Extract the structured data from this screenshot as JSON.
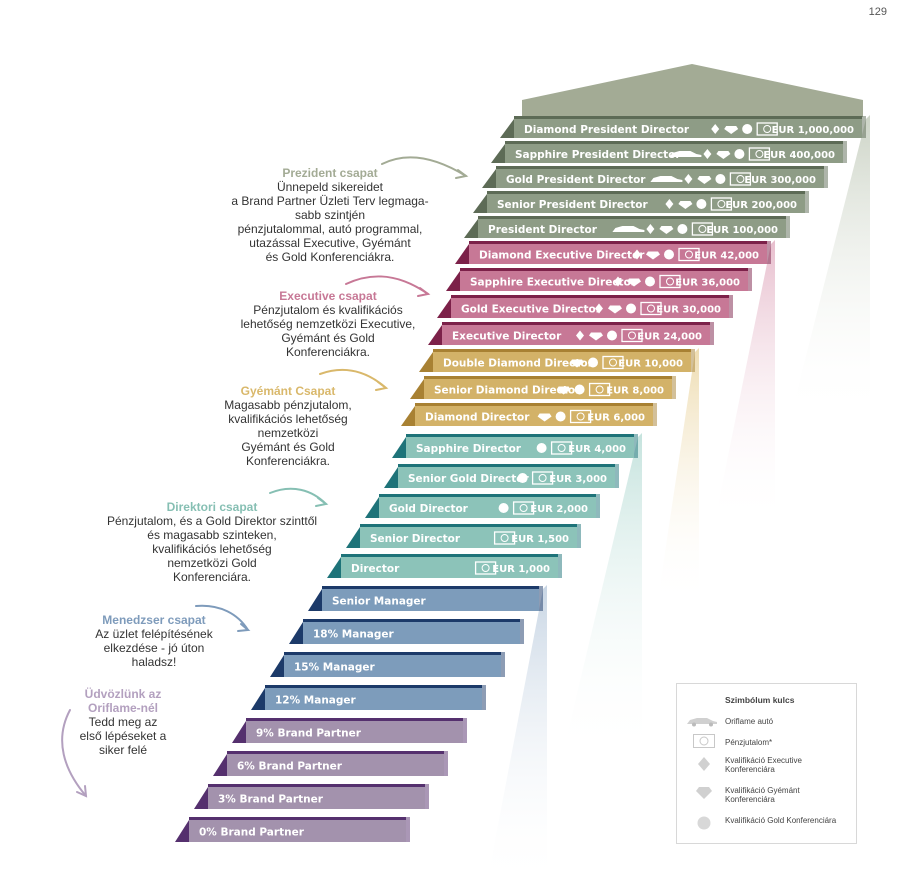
{
  "page_number": "129",
  "levels": [
    {
      "label": "Diamond President Director",
      "amount": "EUR 1,000,000",
      "group": "president",
      "car": false,
      "diamond": true,
      "gem": true,
      "circle": true,
      "cash": true
    },
    {
      "label": "Sapphire President Director",
      "amount": "EUR 400,000",
      "group": "president",
      "car": true,
      "diamond": true,
      "gem": true,
      "circle": true,
      "cash": true
    },
    {
      "label": "Gold President Director",
      "amount": "EUR 300,000",
      "group": "president",
      "car": true,
      "diamond": true,
      "gem": true,
      "circle": true,
      "cash": true
    },
    {
      "label": "Senior President Director",
      "amount": "EUR 200,000",
      "group": "president",
      "car": false,
      "diamond": true,
      "gem": true,
      "circle": true,
      "cash": true
    },
    {
      "label": "President Director",
      "amount": "EUR 100,000",
      "group": "president",
      "car": true,
      "diamond": true,
      "gem": true,
      "circle": true,
      "cash": true
    },
    {
      "label": "Diamond Executive Director",
      "amount": "EUR 42,000",
      "group": "executive",
      "car": false,
      "diamond": true,
      "gem": true,
      "circle": true,
      "cash": true
    },
    {
      "label": "Sapphire Executive Director",
      "amount": "EUR 36,000",
      "group": "executive",
      "car": false,
      "diamond": true,
      "gem": true,
      "circle": true,
      "cash": true
    },
    {
      "label": "Gold Executive Director",
      "amount": "EUR 30,000",
      "group": "executive",
      "car": false,
      "diamond": true,
      "gem": true,
      "circle": true,
      "cash": true
    },
    {
      "label": "Executive Director",
      "amount": "EUR 24,000",
      "group": "executive",
      "car": false,
      "diamond": true,
      "gem": true,
      "circle": true,
      "cash": true
    },
    {
      "label": "Double Diamond Director",
      "amount": "EUR 10,000",
      "group": "diamond",
      "car": false,
      "diamond": false,
      "gem": true,
      "circle": true,
      "cash": true
    },
    {
      "label": "Senior Diamond Director",
      "amount": "EUR 8,000",
      "group": "diamond",
      "car": false,
      "diamond": false,
      "gem": true,
      "circle": true,
      "cash": true
    },
    {
      "label": "Diamond Director",
      "amount": "EUR 6,000",
      "group": "diamond",
      "car": false,
      "diamond": false,
      "gem": true,
      "circle": true,
      "cash": true
    },
    {
      "label": "Sapphire Director",
      "amount": "EUR 4,000",
      "group": "director",
      "car": false,
      "diamond": false,
      "gem": false,
      "circle": true,
      "cash": true
    },
    {
      "label": "Senior Gold Director",
      "amount": "EUR 3,000",
      "group": "director",
      "car": false,
      "diamond": false,
      "gem": false,
      "circle": true,
      "cash": true
    },
    {
      "label": "Gold Director",
      "amount": "EUR 2,000",
      "group": "director",
      "car": false,
      "diamond": false,
      "gem": false,
      "circle": true,
      "cash": true
    },
    {
      "label": "Senior Director",
      "amount": "EUR 1,500",
      "group": "director",
      "car": false,
      "diamond": false,
      "gem": false,
      "circle": false,
      "cash": true
    },
    {
      "label": "Director",
      "amount": "EUR 1,000",
      "group": "director",
      "car": false,
      "diamond": false,
      "gem": false,
      "circle": false,
      "cash": true
    },
    {
      "label": "Senior Manager",
      "amount": "",
      "group": "manager",
      "car": false,
      "diamond": false,
      "gem": false,
      "circle": false,
      "cash": false
    },
    {
      "label": "18% Manager",
      "amount": "",
      "group": "manager",
      "car": false,
      "diamond": false,
      "gem": false,
      "circle": false,
      "cash": false
    },
    {
      "label": "15% Manager",
      "amount": "",
      "group": "manager",
      "car": false,
      "diamond": false,
      "gem": false,
      "circle": false,
      "cash": false
    },
    {
      "label": "12% Manager",
      "amount": "",
      "group": "manager",
      "car": false,
      "diamond": false,
      "gem": false,
      "circle": false,
      "cash": false
    },
    {
      "label": "9% Brand Partner",
      "amount": "",
      "group": "partner",
      "car": false,
      "diamond": false,
      "gem": false,
      "circle": false,
      "cash": false
    },
    {
      "label": "6% Brand Partner",
      "amount": "",
      "group": "partner",
      "car": false,
      "diamond": false,
      "gem": false,
      "circle": false,
      "cash": false
    },
    {
      "label": "3% Brand Partner",
      "amount": "",
      "group": "partner",
      "car": false,
      "diamond": false,
      "gem": false,
      "circle": false,
      "cash": false
    },
    {
      "label": "0% Brand Partner",
      "amount": "",
      "group": "partner",
      "car": false,
      "diamond": false,
      "gem": false,
      "circle": false,
      "cash": false
    }
  ],
  "group_colors": {
    "president": {
      "face": "#8e9c86",
      "dark": "#5d6b56",
      "text": "#a3ab95"
    },
    "executive": {
      "face": "#c77896",
      "dark": "#7c2149",
      "text": "#c77896"
    },
    "diamond": {
      "face": "#d3b268",
      "dark": "#a88133",
      "text": "#d9b86b"
    },
    "director": {
      "face": "#8cc3b9",
      "dark": "#1e7379",
      "text": "#86bfb3"
    },
    "manager": {
      "face": "#7d9cbb",
      "dark": "#1c3a69",
      "text": "#7e9bbb"
    },
    "partner": {
      "face": "#a392ad",
      "dark": "#55306e",
      "text": "#b3a0bf"
    }
  },
  "groups": [
    {
      "key": "president",
      "title": "Prezident csapat",
      "lines": [
        "Ünnepeld sikereidet",
        "a Brand Partner Üzleti Terv legmaga-",
        "sabb szintjén",
        "pénzjutalommal, autó programmal,",
        "utazással Executive, Gyémánt",
        "és Gold Konferenciákra."
      ]
    },
    {
      "key": "executive",
      "title": "Executive csapat",
      "lines": [
        "Pénzjutalom és kvalifikációs",
        "lehetőség nemzetközi Executive,",
        "Gyémánt és Gold",
        "Konferenciákra."
      ]
    },
    {
      "key": "diamond",
      "title": "Gyémánt Csapat",
      "lines": [
        "Magasabb pénzjutalom,",
        "kvalifikációs lehetőség",
        "nemzetközi",
        "Gyémánt és Gold",
        "Konferenciákra."
      ]
    },
    {
      "key": "director",
      "title": "Direktori csapat",
      "lines": [
        "Pénzjutalom, és a Gold Direktor szinttől",
        "és magasabb szinteken,",
        "kvalifikációs lehetőség",
        "nemzetközi Gold",
        "Konferenciára."
      ]
    },
    {
      "key": "manager",
      "title": "Menedzser csapat",
      "lines": [
        "Az üzlet felépítésének",
        "elkezdése - jó úton",
        "haladsz!"
      ]
    },
    {
      "key": "partner",
      "title": "Üdvözlünk az Oriflame-nél",
      "lines": [
        "Tedd meg az",
        "első lépéseket a",
        "siker felé"
      ]
    }
  ],
  "legend": {
    "title": "Szimbólum kulcs",
    "car": "Oriflame autó",
    "cash": "Pénzjutalom*",
    "diamond": "Kvalifikáció Executive Konferenciára",
    "gem": "Kvalifikáció Gyémánt Konferenciára",
    "circle": "Kvalifikáció Gold Konferenciára"
  }
}
